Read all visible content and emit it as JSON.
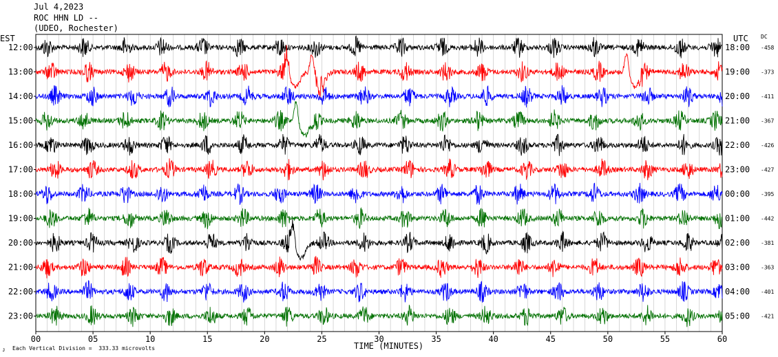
{
  "header": {
    "date": "Jul 4,2023",
    "station": "ROC HHN LD --",
    "location": "(UDEO, Rochester)"
  },
  "left_timezone": "EST",
  "right_timezone": "UTC",
  "offset_header": "DC",
  "footer": {
    "xlabel": "TIME (MINUTES)",
    "scale_note": "Each Vertical Division =  333.33 microvolts",
    "corner_mark": "ᴊ"
  },
  "colors": [
    "#000000",
    "#ff0000",
    "#0000ff",
    "#007000"
  ],
  "chart_data": {
    "type": "line",
    "chart_kind": "helicorder",
    "xlim": [
      0,
      60
    ],
    "x_ticks": [
      0,
      5,
      10,
      15,
      20,
      25,
      30,
      35,
      40,
      45,
      50,
      55,
      60
    ],
    "x_tick_labels": [
      "00",
      "05",
      "10",
      "15",
      "20",
      "25",
      "30",
      "35",
      "40",
      "45",
      "50",
      "55",
      "60"
    ],
    "grid": "vertical lines every minute",
    "rows": [
      {
        "local": "12:00",
        "utc": "18:00",
        "dc": "-458",
        "color_index": 0
      },
      {
        "local": "13:00",
        "utc": "19:00",
        "dc": "-373",
        "color_index": 1
      },
      {
        "local": "14:00",
        "utc": "20:00",
        "dc": "-411",
        "color_index": 2
      },
      {
        "local": "15:00",
        "utc": "21:00",
        "dc": "-367",
        "color_index": 3
      },
      {
        "local": "16:00",
        "utc": "22:00",
        "dc": "-426",
        "color_index": 0
      },
      {
        "local": "17:00",
        "utc": "23:00",
        "dc": "-427",
        "color_index": 1
      },
      {
        "local": "18:00",
        "utc": "00:00",
        "dc": "-395",
        "color_index": 2
      },
      {
        "local": "19:00",
        "utc": "01:00",
        "dc": "-442",
        "color_index": 3
      },
      {
        "local": "20:00",
        "utc": "02:00",
        "dc": "-381",
        "color_index": 0
      },
      {
        "local": "21:00",
        "utc": "03:00",
        "dc": "-363",
        "color_index": 1
      },
      {
        "local": "22:00",
        "utc": "04:00",
        "dc": "-401",
        "color_index": 2
      },
      {
        "local": "23:00",
        "utc": "05:00",
        "dc": "-421",
        "color_index": 3
      }
    ],
    "notable_events": [
      {
        "row_local": "13:00",
        "minute": 21.8
      },
      {
        "row_local": "13:00",
        "minute": 24.0
      },
      {
        "row_local": "13:00",
        "minute": 51.5
      },
      {
        "row_local": "15:00",
        "minute": 22.6
      },
      {
        "row_local": "20:00",
        "minute": 22.3
      }
    ]
  }
}
